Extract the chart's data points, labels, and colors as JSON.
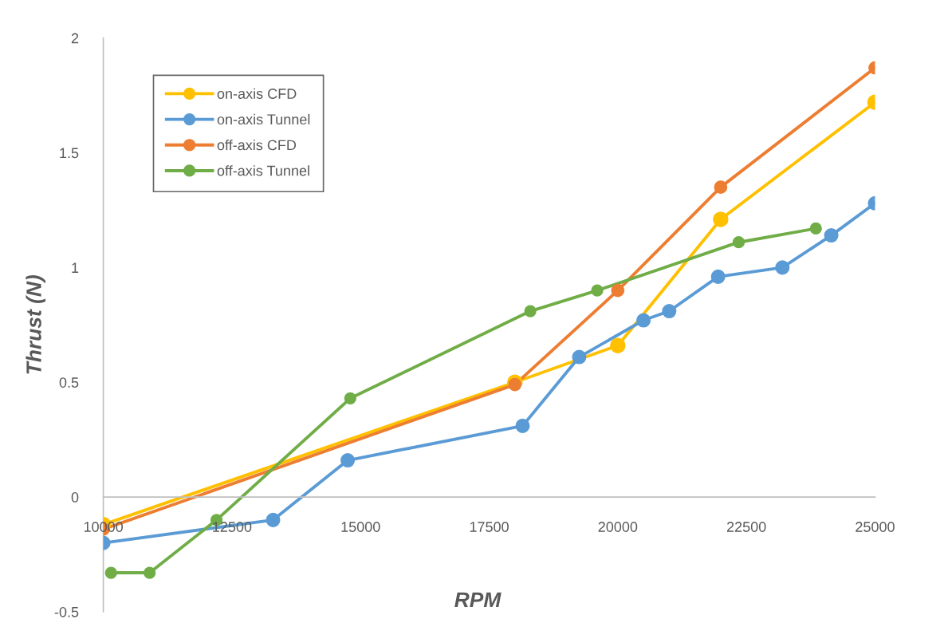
{
  "chart_data": {
    "type": "line",
    "xlabel": "RPM",
    "ylabel": "Thrust (N)",
    "xlim": [
      10000,
      25000
    ],
    "xticks": [
      10000,
      12500,
      15000,
      17500,
      20000,
      22500,
      25000
    ],
    "ylim": [
      -0.5,
      2
    ],
    "yticks": [
      -0.5,
      0,
      0.5,
      1,
      1.5,
      2
    ],
    "grid": false,
    "legend": "top left",
    "marker": "circle",
    "line_style": "solid",
    "series": [
      {
        "name": "on-axis CFD",
        "color": "#ffc000",
        "x": [
          10000,
          18000,
          20000,
          22000,
          25000
        ],
        "values": [
          -0.12,
          0.5,
          0.66,
          1.21,
          1.72
        ]
      },
      {
        "name": "on-axis Tunnel",
        "color": "#5b9bd5",
        "x": [
          10000,
          13300,
          14750,
          18150,
          19250,
          20500,
          21000,
          21950,
          23200,
          24150,
          25000
        ],
        "values": [
          -0.2,
          -0.1,
          0.16,
          0.31,
          0.61,
          0.77,
          0.81,
          0.96,
          1.0,
          1.14,
          1.28
        ]
      },
      {
        "name": "off-axis CFD",
        "color": "#ed7d31",
        "x": [
          10000,
          18000,
          20000,
          22000,
          25000
        ],
        "values": [
          -0.14,
          0.49,
          0.9,
          1.35,
          1.87
        ]
      },
      {
        "name": "off-axis Tunnel",
        "color": "#70ad47",
        "x": [
          10150,
          10900,
          12200,
          14800,
          18300,
          19600,
          22350,
          23850
        ],
        "values": [
          -0.33,
          -0.33,
          -0.1,
          0.43,
          0.81,
          0.9,
          1.11,
          1.17
        ]
      }
    ]
  }
}
